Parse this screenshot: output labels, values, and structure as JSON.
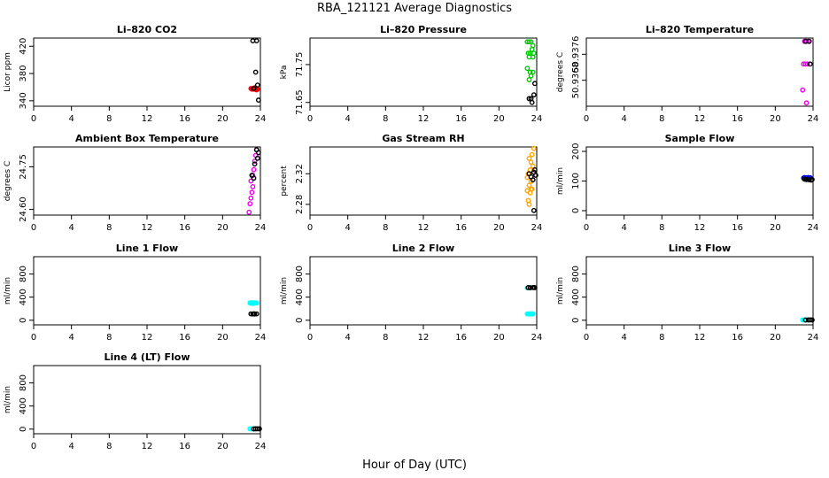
{
  "page": {
    "title": "RBA_121121  Average Diagnostics",
    "xlabel": "Hour of Day (UTC)"
  },
  "chart_data": [
    {
      "type": "scatter",
      "title": "Li–820 CO2",
      "ylabel": "Licor ppm",
      "xlim": [
        0,
        24
      ],
      "ylim": [
        332,
        432
      ],
      "xticks": [
        0,
        4,
        8,
        12,
        16,
        20,
        24
      ],
      "yticks": [
        340,
        380,
        420
      ],
      "yticklabels": [
        "340",
        "380",
        "420"
      ],
      "series": [
        {
          "name": "red",
          "color": "#ff0000",
          "points": [
            [
              23.0,
              358
            ],
            [
              23.1,
              357
            ],
            [
              23.2,
              358
            ],
            [
              23.3,
              357
            ],
            [
              23.4,
              358
            ],
            [
              23.5,
              357
            ],
            [
              23.6,
              358
            ],
            [
              23.7,
              357
            ],
            [
              23.4,
              359
            ],
            [
              23.6,
              356
            ]
          ]
        },
        {
          "name": "black",
          "color": "#000000",
          "points": [
            [
              23.2,
              428
            ],
            [
              23.6,
              428
            ],
            [
              23.5,
              382
            ],
            [
              23.7,
              363
            ],
            [
              23.3,
              358
            ],
            [
              23.8,
              341
            ]
          ]
        }
      ]
    },
    {
      "type": "scatter",
      "title": "Li–820 Pressure",
      "ylabel": "kPa",
      "xlim": [
        0,
        24
      ],
      "ylim": [
        71.64,
        71.82
      ],
      "xticks": [
        0,
        4,
        8,
        12,
        16,
        20,
        24
      ],
      "yticks": [
        71.65,
        71.75
      ],
      "yticklabels": [
        "71.65",
        "71.75"
      ],
      "series": [
        {
          "name": "green",
          "color": "#00cc00",
          "points": [
            [
              23.0,
              71.81
            ],
            [
              23.2,
              71.81
            ],
            [
              23.4,
              71.81
            ],
            [
              23.6,
              71.8
            ],
            [
              23.1,
              71.78
            ],
            [
              23.3,
              71.78
            ],
            [
              23.5,
              71.79
            ],
            [
              23.7,
              71.78
            ],
            [
              23.2,
              71.77
            ],
            [
              23.6,
              71.77
            ],
            [
              23.0,
              71.74
            ],
            [
              23.3,
              71.73
            ],
            [
              23.6,
              71.73
            ],
            [
              23.4,
              71.72
            ],
            [
              23.2,
              71.71
            ]
          ]
        },
        {
          "name": "black",
          "color": "#000000",
          "points": [
            [
              23.8,
              71.7
            ],
            [
              23.7,
              71.67
            ],
            [
              23.2,
              71.66
            ],
            [
              23.5,
              71.65
            ],
            [
              23.4,
              71.66
            ]
          ]
        }
      ]
    },
    {
      "type": "scatter",
      "title": "Li–820 Temperature",
      "ylabel": "degrees C",
      "xlim": [
        0,
        24
      ],
      "ylim": [
        50.936,
        50.9381
      ],
      "xticks": [
        0,
        4,
        8,
        12,
        16,
        20,
        24
      ],
      "yticks": [
        50.9368,
        50.9376
      ],
      "yticklabels": [
        "50.9368",
        "50.9376"
      ],
      "series": [
        {
          "name": "magenta",
          "color": "#ee00ee",
          "points": [
            [
              23.1,
              50.938
            ],
            [
              23.3,
              50.938
            ],
            [
              23.5,
              50.938
            ],
            [
              23.0,
              50.9373
            ],
            [
              23.2,
              50.9373
            ],
            [
              23.4,
              50.9373
            ],
            [
              22.9,
              50.9365
            ],
            [
              23.3,
              50.9361
            ]
          ]
        },
        {
          "name": "black",
          "color": "#000000",
          "points": [
            [
              23.2,
              50.938
            ],
            [
              23.6,
              50.938
            ],
            [
              23.7,
              50.9373
            ]
          ]
        }
      ]
    },
    {
      "type": "scatter",
      "title": "Ambient Box Temperature",
      "ylabel": "degrees C",
      "xlim": [
        0,
        24
      ],
      "ylim": [
        24.58,
        24.82
      ],
      "xticks": [
        0,
        4,
        8,
        12,
        16,
        20,
        24
      ],
      "yticks": [
        24.6,
        24.75
      ],
      "yticklabels": [
        "24.60",
        "24.75"
      ],
      "series": [
        {
          "name": "magenta",
          "color": "#ee00ee",
          "points": [
            [
              23.6,
              24.81
            ],
            [
              23.5,
              24.79
            ],
            [
              23.4,
              24.77
            ],
            [
              23.3,
              24.74
            ],
            [
              23.2,
              24.72
            ],
            [
              23.0,
              24.7
            ],
            [
              23.2,
              24.68
            ],
            [
              23.1,
              24.66
            ],
            [
              23.0,
              24.64
            ],
            [
              22.9,
              24.62
            ],
            [
              22.8,
              24.59
            ]
          ]
        },
        {
          "name": "black",
          "color": "#000000",
          "points": [
            [
              23.6,
              24.81
            ],
            [
              23.8,
              24.8
            ],
            [
              23.7,
              24.78
            ],
            [
              23.4,
              24.76
            ],
            [
              23.1,
              24.72
            ],
            [
              23.3,
              24.71
            ]
          ]
        }
      ]
    },
    {
      "type": "scatter",
      "title": "Gas Stream RH",
      "ylabel": "percent",
      "xlim": [
        0,
        24
      ],
      "ylim": [
        2.266,
        2.355
      ],
      "xticks": [
        0,
        4,
        8,
        12,
        16,
        20,
        24
      ],
      "yticks": [
        2.28,
        2.32
      ],
      "yticklabels": [
        "2.28",
        "2.32"
      ],
      "series": [
        {
          "name": "orange",
          "color": "#ffa500",
          "points": [
            [
              23.7,
              2.353
            ],
            [
              23.5,
              2.345
            ],
            [
              23.2,
              2.34
            ],
            [
              23.4,
              2.335
            ],
            [
              23.6,
              2.33
            ],
            [
              23.3,
              2.325
            ],
            [
              23.1,
              2.32
            ],
            [
              23.0,
              2.315
            ],
            [
              23.4,
              2.31
            ],
            [
              23.2,
              2.305
            ],
            [
              23.5,
              2.3
            ],
            [
              23.0,
              2.298
            ],
            [
              23.3,
              2.295
            ],
            [
              23.1,
              2.285
            ],
            [
              23.2,
              2.28
            ],
            [
              23.4,
              2.3
            ]
          ]
        },
        {
          "name": "black",
          "color": "#000000",
          "points": [
            [
              23.8,
              2.325
            ],
            [
              23.7,
              2.322
            ],
            [
              23.2,
              2.32
            ],
            [
              23.9,
              2.318
            ],
            [
              23.4,
              2.316
            ],
            [
              23.6,
              2.312
            ],
            [
              23.7,
              2.272
            ]
          ]
        }
      ]
    },
    {
      "type": "scatter",
      "title": "Sample Flow",
      "ylabel": "ml/min",
      "xlim": [
        0,
        24
      ],
      "ylim": [
        -15,
        215
      ],
      "xticks": [
        0,
        4,
        8,
        12,
        16,
        20,
        24
      ],
      "yticks": [
        0,
        100,
        200
      ],
      "yticklabels": [
        "0",
        "100",
        "200"
      ],
      "series": [
        {
          "name": "blue",
          "color": "#0000dd",
          "points": [
            [
              23.0,
              110
            ],
            [
              23.1,
              112
            ],
            [
              23.2,
              110
            ],
            [
              23.3,
              111
            ],
            [
              23.4,
              110
            ],
            [
              23.5,
              112
            ],
            [
              23.6,
              110
            ],
            [
              23.7,
              111
            ],
            [
              23.2,
              108
            ],
            [
              23.4,
              109
            ]
          ]
        },
        {
          "name": "black",
          "color": "#000000",
          "points": [
            [
              23.1,
              106
            ],
            [
              23.3,
              105
            ],
            [
              23.6,
              104
            ],
            [
              23.8,
              103
            ],
            [
              23.9,
              105
            ]
          ]
        }
      ]
    },
    {
      "type": "scatter",
      "title": "Line 1 Flow",
      "ylabel": "ml/min",
      "xlim": [
        0,
        24
      ],
      "ylim": [
        -80,
        1100
      ],
      "xticks": [
        0,
        4,
        8,
        12,
        16,
        20,
        24
      ],
      "yticks": [
        0,
        400,
        800
      ],
      "yticklabels": [
        "0",
        "400",
        "800"
      ],
      "series": [
        {
          "name": "cyan",
          "color": "#00ffff",
          "points": [
            [
              22.9,
              300
            ],
            [
              23.0,
              298
            ],
            [
              23.1,
              302
            ],
            [
              23.2,
              300
            ],
            [
              23.3,
              299
            ],
            [
              23.4,
              301
            ],
            [
              23.5,
              300
            ],
            [
              23.6,
              298
            ],
            [
              23.1,
              290
            ],
            [
              23.3,
              292
            ]
          ]
        },
        {
          "name": "black",
          "color": "#000000",
          "points": [
            [
              23.0,
              110
            ],
            [
              23.2,
              108
            ],
            [
              23.4,
              109
            ],
            [
              23.6,
              110
            ],
            [
              23.3,
              112
            ]
          ]
        }
      ]
    },
    {
      "type": "scatter",
      "title": "Line 2 Flow",
      "ylabel": "ml/min",
      "xlim": [
        0,
        24
      ],
      "ylim": [
        -80,
        1100
      ],
      "xticks": [
        0,
        4,
        8,
        12,
        16,
        20,
        24
      ],
      "yticks": [
        0,
        400,
        800
      ],
      "yticklabels": [
        "0",
        "400",
        "800"
      ],
      "series": [
        {
          "name": "cyan",
          "color": "#00ffff",
          "points": [
            [
              23.0,
              110
            ],
            [
              23.1,
              108
            ],
            [
              23.2,
              112
            ],
            [
              23.3,
              110
            ],
            [
              23.4,
              109
            ],
            [
              23.5,
              111
            ],
            [
              23.6,
              110
            ],
            [
              23.0,
              560
            ],
            [
              23.3,
              562
            ]
          ]
        },
        {
          "name": "black",
          "color": "#000000",
          "points": [
            [
              23.1,
              565
            ],
            [
              23.3,
              563
            ],
            [
              23.6,
              566
            ],
            [
              23.8,
              564
            ],
            [
              23.7,
              568
            ]
          ]
        }
      ]
    },
    {
      "type": "scatter",
      "title": "Line 3 Flow",
      "ylabel": "ml/min",
      "xlim": [
        0,
        24
      ],
      "ylim": [
        -80,
        1100
      ],
      "xticks": [
        0,
        4,
        8,
        12,
        16,
        20,
        24
      ],
      "yticks": [
        0,
        400,
        800
      ],
      "yticklabels": [
        "0",
        "400",
        "800"
      ],
      "series": [
        {
          "name": "cyan",
          "color": "#00ffff",
          "points": [
            [
              22.9,
              5
            ],
            [
              23.1,
              6
            ],
            [
              23.3,
              5
            ],
            [
              23.5,
              4
            ]
          ]
        },
        {
          "name": "black",
          "color": "#000000",
          "points": [
            [
              23.2,
              4
            ],
            [
              23.5,
              5
            ],
            [
              23.7,
              6
            ],
            [
              23.9,
              5
            ]
          ]
        }
      ]
    },
    {
      "type": "scatter",
      "title": "Line 4 (LT) Flow",
      "ylabel": "ml/min",
      "xlim": [
        0,
        24
      ],
      "ylim": [
        -80,
        1100
      ],
      "xticks": [
        0,
        4,
        8,
        12,
        16,
        20,
        24
      ],
      "yticks": [
        0,
        400,
        800
      ],
      "yticklabels": [
        "0",
        "400",
        "800"
      ],
      "series": [
        {
          "name": "cyan",
          "color": "#00ffff",
          "points": [
            [
              22.9,
              5
            ],
            [
              23.1,
              6
            ],
            [
              23.3,
              5
            ]
          ]
        },
        {
          "name": "black",
          "color": "#000000",
          "points": [
            [
              23.3,
              4
            ],
            [
              23.5,
              5
            ],
            [
              23.7,
              6
            ],
            [
              23.9,
              5
            ]
          ]
        }
      ]
    }
  ]
}
